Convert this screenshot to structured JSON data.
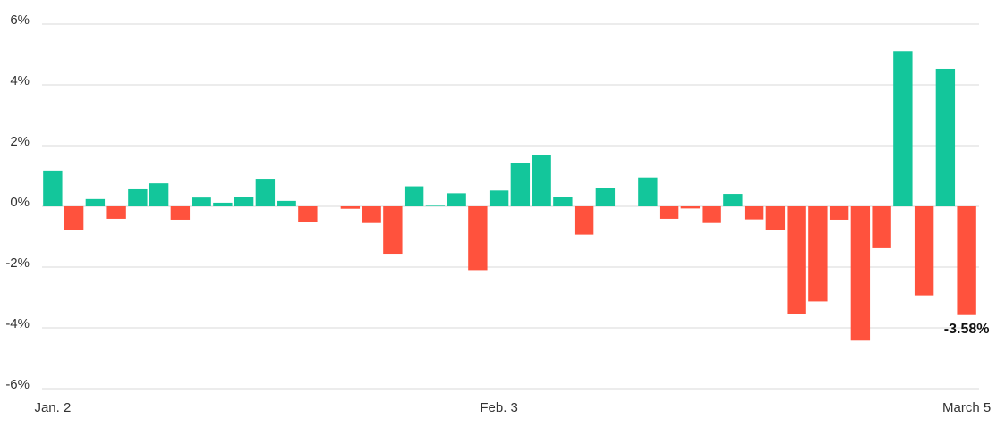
{
  "chart_data": {
    "type": "bar",
    "categories": [
      "Jan. 2",
      null,
      null,
      null,
      null,
      null,
      null,
      null,
      null,
      null,
      null,
      null,
      null,
      null,
      null,
      null,
      null,
      null,
      null,
      null,
      null,
      "Feb. 3",
      null,
      null,
      null,
      null,
      null,
      null,
      null,
      null,
      null,
      null,
      null,
      null,
      null,
      null,
      null,
      null,
      null,
      null,
      null,
      null,
      null,
      "March 5"
    ],
    "values": [
      1.18,
      -0.79,
      0.24,
      -0.41,
      0.56,
      0.76,
      -0.44,
      0.29,
      0.12,
      0.32,
      0.91,
      0.18,
      -0.5,
      0,
      -0.08,
      -0.55,
      -1.56,
      0.66,
      0.02,
      0.43,
      -2.1,
      0.52,
      1.44,
      1.68,
      0.31,
      -0.93,
      0.6,
      0,
      0.95,
      -0.41,
      -0.07,
      -0.55,
      0.41,
      -0.43,
      -0.79,
      -3.55,
      -3.13,
      -0.44,
      -4.42,
      -1.38,
      5.11,
      -2.93,
      4.53,
      -3.58
    ],
    "value_labels": [
      null,
      null,
      null,
      null,
      null,
      null,
      null,
      null,
      null,
      null,
      null,
      null,
      null,
      null,
      null,
      null,
      null,
      null,
      null,
      null,
      null,
      null,
      null,
      null,
      null,
      null,
      null,
      null,
      null,
      null,
      null,
      null,
      null,
      null,
      null,
      null,
      null,
      null,
      null,
      null,
      null,
      null,
      null,
      "-3.58%"
    ],
    "positive_color": "#13c69b",
    "negative_color": "#ff523d",
    "ylim": [
      -6,
      6
    ],
    "yticks": [
      {
        "value": -6,
        "label": "-6%"
      },
      {
        "value": -4,
        "label": "-4%"
      },
      {
        "value": -2,
        "label": "-2%"
      },
      {
        "value": 0,
        "label": "0%"
      },
      {
        "value": 2,
        "label": "2%"
      },
      {
        "value": 4,
        "label": "4%"
      },
      {
        "value": 6,
        "label": "6%"
      }
    ],
    "grid": true
  }
}
